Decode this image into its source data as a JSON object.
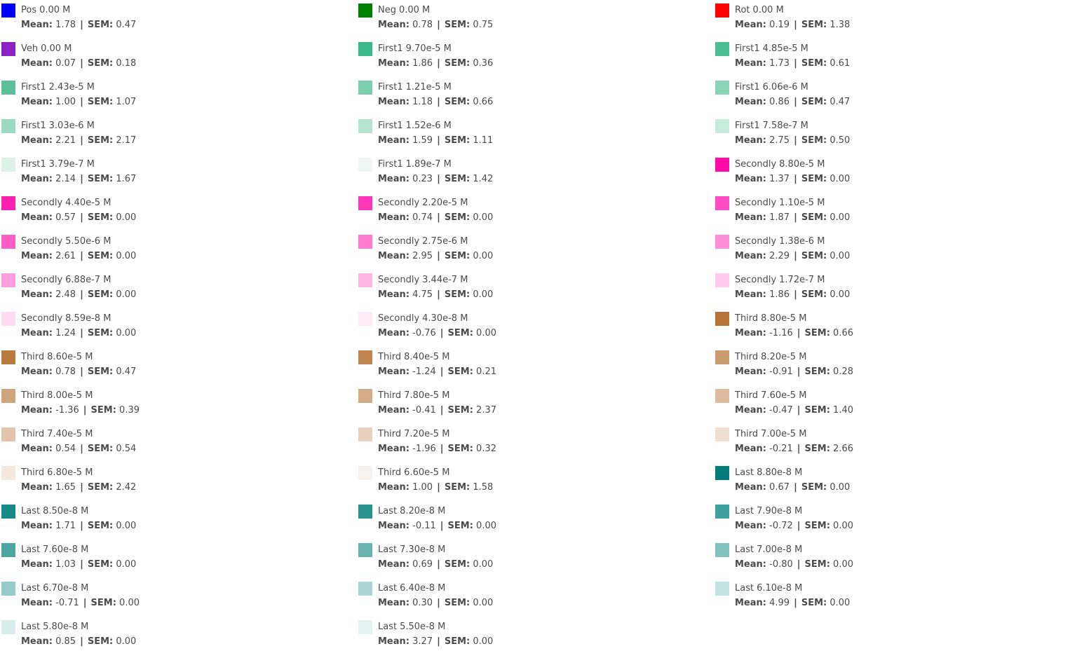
{
  "legend": {
    "columns": [
      [
        {
          "label": "Pos",
          "concentration": "0.00  M",
          "mean": "1.78",
          "sem": "0.47",
          "color": "#0000ff"
        },
        {
          "label": "Veh",
          "concentration": "0.00  M",
          "mean": "0.07",
          "sem": "0.18",
          "color": "#8b22c4"
        },
        {
          "label": "First1",
          "concentration": "2.43e-5 M",
          "mean": "1.00",
          "sem": "1.07",
          "color": "#5bbf9a"
        },
        {
          "label": "First1",
          "concentration": "3.03e-6 M",
          "mean": "2.21",
          "sem": "2.17",
          "color": "#9bd9c1"
        },
        {
          "label": "First1",
          "concentration": "3.79e-7 M",
          "mean": "2.14",
          "sem": "1.67",
          "color": "#dcf1e8"
        },
        {
          "label": "Secondly",
          "concentration": "4.40e-5 M",
          "mean": "0.57",
          "sem": "0.00",
          "color": "#ff22b0"
        },
        {
          "label": "Secondly",
          "concentration": "5.50e-6 M",
          "mean": "2.61",
          "sem": "0.00",
          "color": "#ff5cc8"
        },
        {
          "label": "Secondly",
          "concentration": "6.88e-7 M",
          "mean": "2.48",
          "sem": "0.00",
          "color": "#ff9edd"
        },
        {
          "label": "Secondly",
          "concentration": "8.59e-8 M",
          "mean": "1.24",
          "sem": "0.00",
          "color": "#ffdcf3"
        },
        {
          "label": "Third",
          "concentration": "8.60e-5 M",
          "mean": "0.78",
          "sem": "0.47",
          "color": "#b97a3e"
        },
        {
          "label": "Third",
          "concentration": "8.00e-5 M",
          "mean": "-1.36",
          "sem": "0.39",
          "color": "#cfa57c"
        },
        {
          "label": "Third",
          "concentration": "7.40e-5 M",
          "mean": "0.54",
          "sem": "0.54",
          "color": "#e3c4a8"
        },
        {
          "label": "Third",
          "concentration": "6.80e-5 M",
          "mean": "1.65",
          "sem": "2.42",
          "color": "#f4e8df"
        },
        {
          "label": "Last",
          "concentration": "8.50e-8 M",
          "mean": "1.71",
          "sem": "0.00",
          "color": "#158a86"
        },
        {
          "label": "Last",
          "concentration": "7.60e-8 M",
          "mean": "1.03",
          "sem": "0.00",
          "color": "#4ea6a3"
        },
        {
          "label": "Last",
          "concentration": "6.70e-8 M",
          "mean": "-0.71",
          "sem": "0.00",
          "color": "#95cbc9"
        },
        {
          "label": "Last",
          "concentration": "5.80e-8 M",
          "mean": "0.85",
          "sem": "0.00",
          "color": "#d8ecec"
        }
      ],
      [
        {
          "label": "Neg",
          "concentration": "0.00  M",
          "mean": "0.78",
          "sem": "0.75",
          "color": "#007f00"
        },
        {
          "label": "First1",
          "concentration": "9.70e-5 M",
          "mean": "1.86",
          "sem": "0.36",
          "color": "#3ab88a"
        },
        {
          "label": "First1",
          "concentration": "1.21e-5 M",
          "mean": "1.18",
          "sem": "0.66",
          "color": "#79cfae"
        },
        {
          "label": "First1",
          "concentration": "1.52e-6 M",
          "mean": "1.59",
          "sem": "1.11",
          "color": "#b5e4d2"
        },
        {
          "label": "First1",
          "concentration": "1.89e-7 M",
          "mean": "0.23",
          "sem": "1.42",
          "color": "#edf8f4"
        },
        {
          "label": "Secondly",
          "concentration": "2.20e-5 M",
          "mean": "0.74",
          "sem": "0.00",
          "color": "#ff36b8"
        },
        {
          "label": "Secondly",
          "concentration": "2.75e-6 M",
          "mean": "2.95",
          "sem": "0.00",
          "color": "#ff7ad2"
        },
        {
          "label": "Secondly",
          "concentration": "3.44e-7 M",
          "mean": "4.75",
          "sem": "0.00",
          "color": "#ffb4e6"
        },
        {
          "label": "Secondly",
          "concentration": "4.30e-8 M",
          "mean": "-0.76",
          "sem": "0.00",
          "color": "#ffeaf8"
        },
        {
          "label": "Third",
          "concentration": "8.40e-5 M",
          "mean": "-1.24",
          "sem": "0.21",
          "color": "#c28552"
        },
        {
          "label": "Third",
          "concentration": "7.80e-5 M",
          "mean": "-0.41",
          "sem": "2.37",
          "color": "#d6ab88"
        },
        {
          "label": "Third",
          "concentration": "7.20e-5 M",
          "mean": "-1.96",
          "sem": "0.32",
          "color": "#e8d1bd"
        },
        {
          "label": "Third",
          "concentration": "6.60e-5 M",
          "mean": "1.00",
          "sem": "1.58",
          "color": "#f8f1ec"
        },
        {
          "label": "Last",
          "concentration": "8.20e-8 M",
          "mean": "-0.11",
          "sem": "0.00",
          "color": "#2a928f"
        },
        {
          "label": "Last",
          "concentration": "7.30e-8 M",
          "mean": "0.69",
          "sem": "0.00",
          "color": "#67b4b2"
        },
        {
          "label": "Last",
          "concentration": "6.40e-8 M",
          "mean": "0.30",
          "sem": "0.00",
          "color": "#a9d6d4"
        },
        {
          "label": "Last",
          "concentration": "5.50e-8 M",
          "mean": "3.27",
          "sem": "0.00",
          "color": "#e6f3f3"
        }
      ],
      [
        {
          "label": "Rot",
          "concentration": "0.00  M",
          "mean": "0.19",
          "sem": "1.38",
          "color": "#ff0000"
        },
        {
          "label": "First1",
          "concentration": "4.85e-5 M",
          "mean": "1.73",
          "sem": "0.61",
          "color": "#4dbd94"
        },
        {
          "label": "First1",
          "concentration": "6.06e-6 M",
          "mean": "0.86",
          "sem": "0.47",
          "color": "#8bd3b8"
        },
        {
          "label": "First1",
          "concentration": "7.58e-7 M",
          "mean": "2.75",
          "sem": "0.50",
          "color": "#c6eadc"
        },
        {
          "label": "Secondly",
          "concentration": "8.80e-5 M",
          "mean": "1.37",
          "sem": "0.00",
          "color": "#ff0aa8"
        },
        {
          "label": "Secondly",
          "concentration": "1.10e-5 M",
          "mean": "1.87",
          "sem": "0.00",
          "color": "#ff4cc2"
        },
        {
          "label": "Secondly",
          "concentration": "1.38e-6 M",
          "mean": "2.29",
          "sem": "0.00",
          "color": "#ff8ed8"
        },
        {
          "label": "Secondly",
          "concentration": "1.72e-7 M",
          "mean": "1.86",
          "sem": "0.00",
          "color": "#ffc8ee"
        },
        {
          "label": "Third",
          "concentration": "8.80e-5 M",
          "mean": "-1.16",
          "sem": "0.66",
          "color": "#b87336"
        },
        {
          "label": "Third",
          "concentration": "8.20e-5 M",
          "mean": "-0.91",
          "sem": "0.28",
          "color": "#cb9b70"
        },
        {
          "label": "Third",
          "concentration": "7.60e-5 M",
          "mean": "-0.47",
          "sem": "1.40",
          "color": "#ddbb9c"
        },
        {
          "label": "Third",
          "concentration": "7.00e-5 M",
          "mean": "-0.21",
          "sem": "2.66",
          "color": "#efdfd2"
        },
        {
          "label": "Last",
          "concentration": "8.80e-8 M",
          "mean": "0.67",
          "sem": "0.00",
          "color": "#007d7a"
        },
        {
          "label": "Last",
          "concentration": "7.90e-8 M",
          "mean": "-0.72",
          "sem": "0.00",
          "color": "#3fa09d"
        },
        {
          "label": "Last",
          "concentration": "7.00e-8 M",
          "mean": "-0.80",
          "sem": "0.00",
          "color": "#82c2c0"
        },
        {
          "label": "Last",
          "concentration": "6.10e-8 M",
          "mean": "4.99",
          "sem": "0.00",
          "color": "#c2e2e1"
        }
      ]
    ],
    "mean_key": "Mean:",
    "sem_key": "SEM:",
    "separator": "|"
  }
}
